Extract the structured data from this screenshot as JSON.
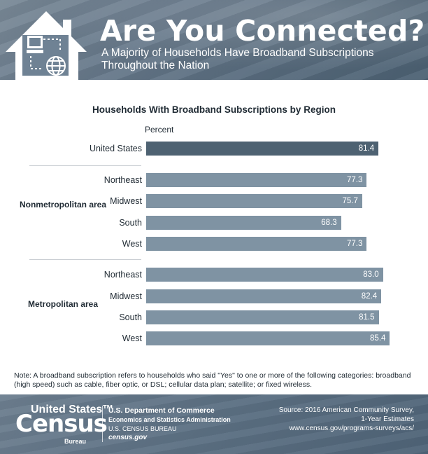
{
  "header": {
    "title": "Are You Connected?",
    "subtitle": "A Majority of Households Have Broadband Subscriptions Throughout the Nation",
    "icons": [
      "house-icon",
      "computer-icon",
      "globe-icon"
    ]
  },
  "chart_data": {
    "type": "bar",
    "orientation": "horizontal",
    "title": "Households With Broadband Subscriptions by Region",
    "unit_label": "Percent",
    "xlim": [
      0,
      100
    ],
    "grid": false,
    "groups": [
      {
        "label": "",
        "categories": [
          "United States"
        ],
        "values": [
          81.4
        ],
        "value_labels": [
          "81.4"
        ],
        "color": "#4e6272"
      },
      {
        "label": "Nonmetropolitan area",
        "categories": [
          "Northeast",
          "Midwest",
          "South",
          "West"
        ],
        "values": [
          77.3,
          75.7,
          68.3,
          77.3
        ],
        "value_labels": [
          "77.3",
          "75.7",
          "68.3",
          "77.3"
        ],
        "color": "#7f93a3"
      },
      {
        "label": "Metropolitan area",
        "categories": [
          "Northeast",
          "Midwest",
          "South",
          "West"
        ],
        "values": [
          83.0,
          82.4,
          81.5,
          85.4
        ],
        "value_labels": [
          "83.0",
          "82.4",
          "81.5",
          "85.4"
        ],
        "color": "#7f93a3"
      }
    ]
  },
  "note": "Note: A broadband subscription refers to households who said \"Yes\" to one or more of the following categories: broadband (high speed) such as cable, fiber optic, or DSL; cellular data plan; satellite; or fixed wireless.",
  "footer": {
    "logo_top": "United States™",
    "logo_main": "Census",
    "logo_sub": "Bureau",
    "dept_line1": "U.S. Department of Commerce",
    "dept_line2": "Economics and Statistics Administration",
    "dept_line3": "U.S. CENSUS BUREAU",
    "dept_line4": "census.gov",
    "source_line1": "Source: 2016 American Community Survey,",
    "source_line2": "1-Year Estimates",
    "source_line3": "www.census.gov/programs-surveys/acs/"
  }
}
